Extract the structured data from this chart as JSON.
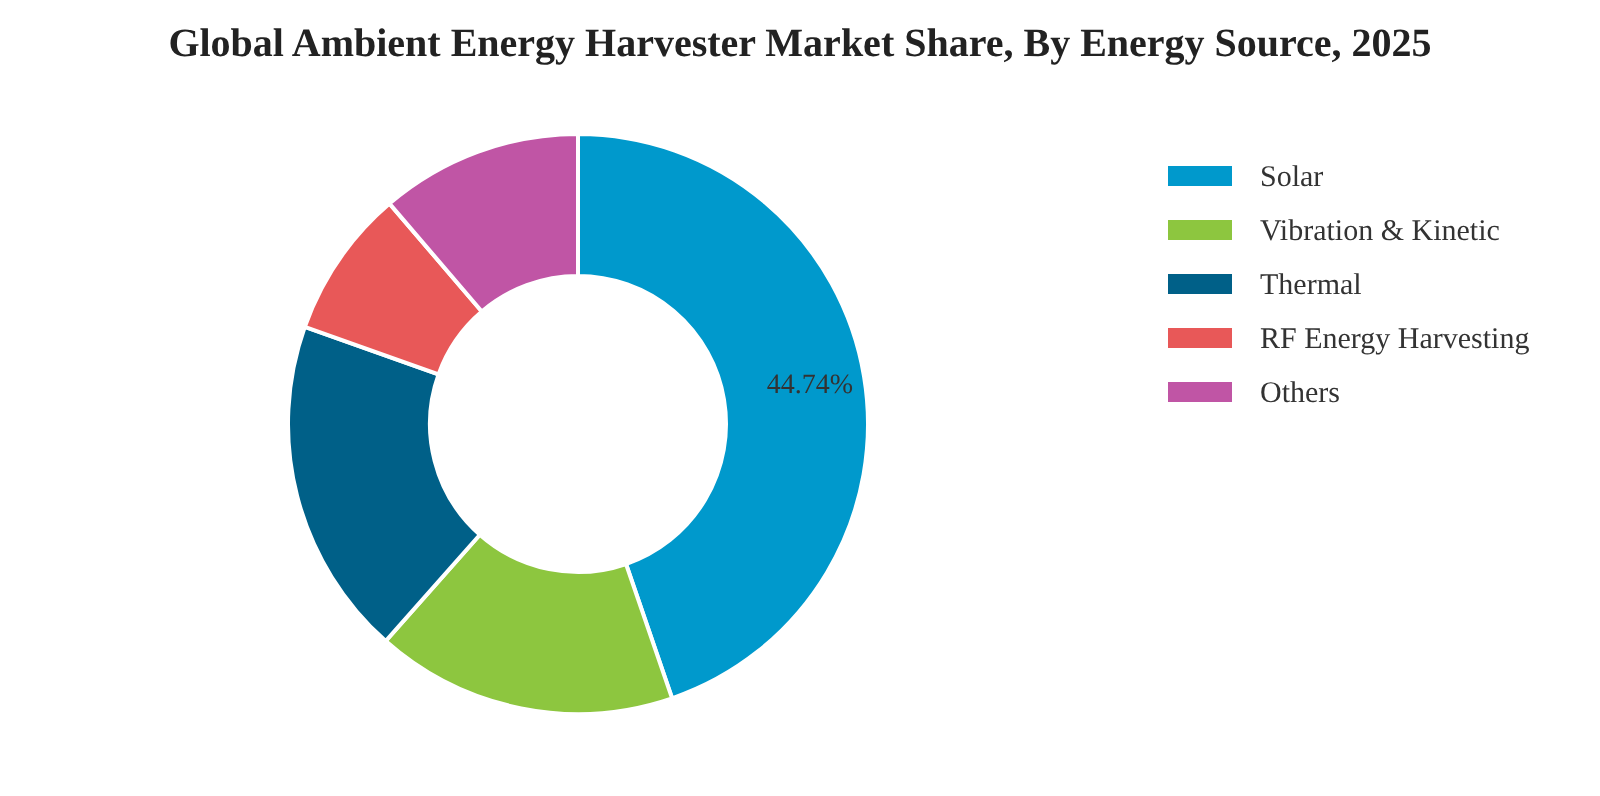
{
  "chart_data": {
    "type": "donut",
    "title": "Global Ambient Energy Harvester Market Share, By Energy Source, 2025",
    "categories": [
      "Solar",
      "Vibration & Kinetic",
      "Thermal",
      "RF Energy Harvesting",
      "Others"
    ],
    "values": [
      44.74,
      16.8,
      18.9,
      8.3,
      11.26
    ],
    "colors": [
      "#0099cc",
      "#8dc63f",
      "#006088",
      "#e85858",
      "#c055a5"
    ],
    "value_labels": [
      "44.74%",
      null,
      null,
      null,
      null
    ],
    "legend": "top right"
  }
}
